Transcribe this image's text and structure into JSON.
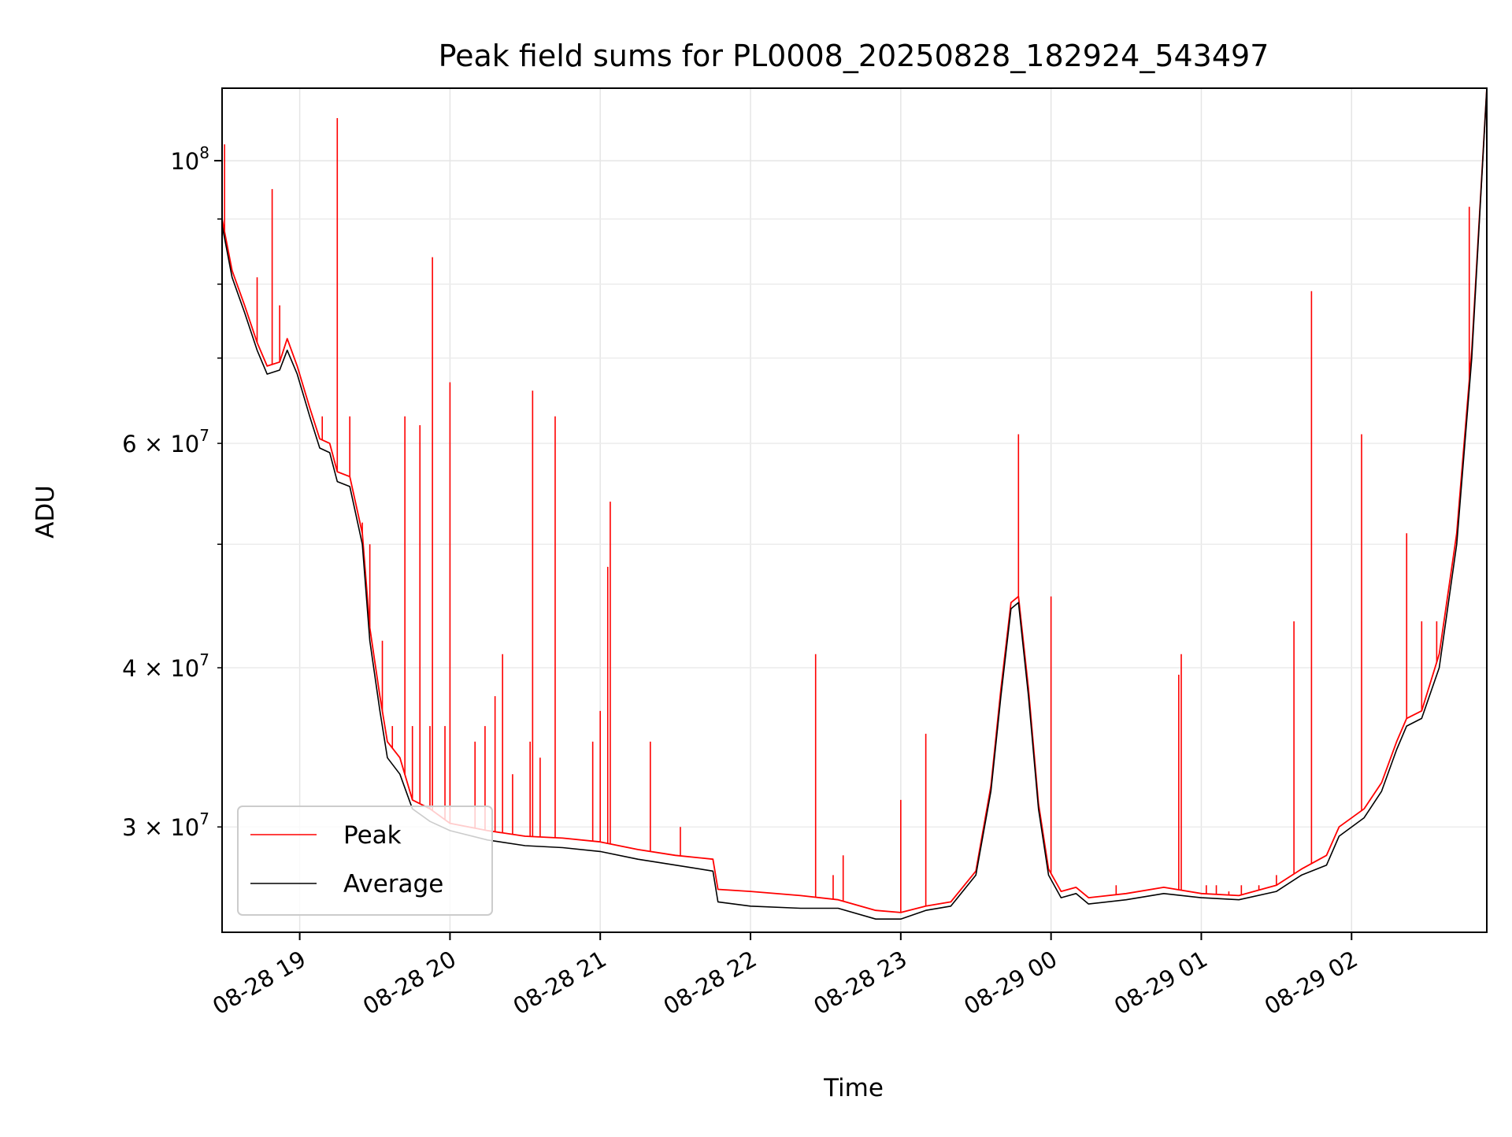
{
  "chart_data": {
    "type": "line",
    "title": "Peak field sums for PL0008_20250828_182924_543497",
    "xlabel": "Time",
    "ylabel": "ADU",
    "y_scale": "log",
    "grid": true,
    "legend_position": "lower-left",
    "xlim": [
      "2025-08-28 18:29",
      "2025-08-29 02:54"
    ],
    "ylim": [
      24800000,
      114000000
    ],
    "x_ticks": [
      {
        "t": "2025-08-28 19:00",
        "label": "08-28 19"
      },
      {
        "t": "2025-08-28 20:00",
        "label": "08-28 20"
      },
      {
        "t": "2025-08-28 21:00",
        "label": "08-28 21"
      },
      {
        "t": "2025-08-28 22:00",
        "label": "08-28 22"
      },
      {
        "t": "2025-08-28 23:00",
        "label": "08-28 23"
      },
      {
        "t": "2025-08-29 00:00",
        "label": "08-29 00"
      },
      {
        "t": "2025-08-29 01:00",
        "label": "08-29 01"
      },
      {
        "t": "2025-08-29 02:00",
        "label": "08-29 02"
      }
    ],
    "y_major_ticks": [
      {
        "v": 100000000,
        "base": "10",
        "exp": "8"
      }
    ],
    "y_minor_ticks": [
      {
        "v": 30000000,
        "coef": "3",
        "base": "10",
        "exp": "7"
      },
      {
        "v": 40000000,
        "coef": "4",
        "base": "10",
        "exp": "7"
      },
      {
        "v": 50000000
      },
      {
        "v": 60000000,
        "coef": "6",
        "base": "10",
        "exp": "7"
      },
      {
        "v": 70000000
      },
      {
        "v": 80000000
      },
      {
        "v": 90000000
      }
    ],
    "series": [
      {
        "name": "Average",
        "color": "#000000",
        "points": [
          [
            "2025-08-28 18:29",
            89000000
          ],
          [
            "2025-08-28 18:33",
            81000000
          ],
          [
            "2025-08-28 18:38",
            76000000
          ],
          [
            "2025-08-28 18:43",
            71000000
          ],
          [
            "2025-08-28 18:47",
            68000000
          ],
          [
            "2025-08-28 18:52",
            68500000
          ],
          [
            "2025-08-28 18:55",
            71000000
          ],
          [
            "2025-08-28 18:59",
            68000000
          ],
          [
            "2025-08-28 19:04",
            63000000
          ],
          [
            "2025-08-28 19:08",
            59500000
          ],
          [
            "2025-08-28 19:12",
            59000000
          ],
          [
            "2025-08-28 19:15",
            56000000
          ],
          [
            "2025-08-28 19:20",
            55500000
          ],
          [
            "2025-08-28 19:25",
            50000000
          ],
          [
            "2025-08-28 19:28",
            42000000
          ],
          [
            "2025-08-28 19:32",
            37000000
          ],
          [
            "2025-08-28 19:35",
            34000000
          ],
          [
            "2025-08-28 19:40",
            33000000
          ],
          [
            "2025-08-28 19:45",
            31000000
          ],
          [
            "2025-08-28 19:52",
            30300000
          ],
          [
            "2025-08-28 20:00",
            29800000
          ],
          [
            "2025-08-28 20:15",
            29300000
          ],
          [
            "2025-08-28 20:30",
            29000000
          ],
          [
            "2025-08-28 20:45",
            28900000
          ],
          [
            "2025-08-28 21:00",
            28700000
          ],
          [
            "2025-08-28 21:15",
            28300000
          ],
          [
            "2025-08-28 21:30",
            28000000
          ],
          [
            "2025-08-28 21:45",
            27700000
          ],
          [
            "2025-08-28 21:47",
            26200000
          ],
          [
            "2025-08-28 22:00",
            26000000
          ],
          [
            "2025-08-28 22:20",
            25900000
          ],
          [
            "2025-08-28 22:35",
            25900000
          ],
          [
            "2025-08-28 22:50",
            25400000
          ],
          [
            "2025-08-28 23:00",
            25400000
          ],
          [
            "2025-08-28 23:10",
            25800000
          ],
          [
            "2025-08-28 23:20",
            26000000
          ],
          [
            "2025-08-28 23:30",
            27500000
          ],
          [
            "2025-08-28 23:36",
            32000000
          ],
          [
            "2025-08-28 23:40",
            38000000
          ],
          [
            "2025-08-28 23:44",
            44500000
          ],
          [
            "2025-08-28 23:47",
            45000000
          ],
          [
            "2025-08-28 23:51",
            38000000
          ],
          [
            "2025-08-28 23:55",
            31000000
          ],
          [
            "2025-08-28 23:59",
            27500000
          ],
          [
            "2025-08-29 00:04",
            26400000
          ],
          [
            "2025-08-29 00:10",
            26600000
          ],
          [
            "2025-08-29 00:15",
            26100000
          ],
          [
            "2025-08-29 00:30",
            26300000
          ],
          [
            "2025-08-29 00:45",
            26600000
          ],
          [
            "2025-08-29 01:00",
            26400000
          ],
          [
            "2025-08-29 01:15",
            26300000
          ],
          [
            "2025-08-29 01:30",
            26700000
          ],
          [
            "2025-08-29 01:40",
            27500000
          ],
          [
            "2025-08-29 01:50",
            28000000
          ],
          [
            "2025-08-29 01:55",
            29500000
          ],
          [
            "2025-08-29 02:05",
            30500000
          ],
          [
            "2025-08-29 02:12",
            32000000
          ],
          [
            "2025-08-29 02:18",
            34500000
          ],
          [
            "2025-08-29 02:22",
            36000000
          ],
          [
            "2025-08-29 02:28",
            36500000
          ],
          [
            "2025-08-29 02:35",
            40000000
          ],
          [
            "2025-08-29 02:42",
            50000000
          ],
          [
            "2025-08-29 02:48",
            70000000
          ],
          [
            "2025-08-29 02:54",
            114000000
          ]
        ]
      },
      {
        "name": "Peak",
        "color": "#ff0000",
        "points": [
          [
            "2025-08-28 18:29",
            90000000
          ],
          [
            "2025-08-28 18:33",
            82000000
          ],
          [
            "2025-08-28 18:38",
            77000000
          ],
          [
            "2025-08-28 18:43",
            72000000
          ],
          [
            "2025-08-28 18:47",
            69000000
          ],
          [
            "2025-08-28 18:52",
            69500000
          ],
          [
            "2025-08-28 18:55",
            72500000
          ],
          [
            "2025-08-28 18:59",
            69000000
          ],
          [
            "2025-08-28 19:04",
            64000000
          ],
          [
            "2025-08-28 19:08",
            60500000
          ],
          [
            "2025-08-28 19:12",
            60000000
          ],
          [
            "2025-08-28 19:15",
            57000000
          ],
          [
            "2025-08-28 19:20",
            56500000
          ],
          [
            "2025-08-28 19:25",
            51000000
          ],
          [
            "2025-08-28 19:28",
            43000000
          ],
          [
            "2025-08-28 19:32",
            38000000
          ],
          [
            "2025-08-28 19:35",
            35000000
          ],
          [
            "2025-08-28 19:40",
            34000000
          ],
          [
            "2025-08-28 19:45",
            31500000
          ],
          [
            "2025-08-28 19:52",
            31000000
          ],
          [
            "2025-08-28 20:00",
            30200000
          ],
          [
            "2025-08-28 20:15",
            29800000
          ],
          [
            "2025-08-28 20:30",
            29500000
          ],
          [
            "2025-08-28 20:45",
            29400000
          ],
          [
            "2025-08-28 21:00",
            29200000
          ],
          [
            "2025-08-28 21:15",
            28800000
          ],
          [
            "2025-08-28 21:30",
            28500000
          ],
          [
            "2025-08-28 21:45",
            28300000
          ],
          [
            "2025-08-28 21:47",
            26800000
          ],
          [
            "2025-08-28 22:00",
            26700000
          ],
          [
            "2025-08-28 22:20",
            26500000
          ],
          [
            "2025-08-28 22:35",
            26300000
          ],
          [
            "2025-08-28 22:50",
            25800000
          ],
          [
            "2025-08-28 23:00",
            25700000
          ],
          [
            "2025-08-28 23:10",
            26000000
          ],
          [
            "2025-08-28 23:20",
            26200000
          ],
          [
            "2025-08-28 23:30",
            27700000
          ],
          [
            "2025-08-28 23:36",
            32300000
          ],
          [
            "2025-08-28 23:40",
            38500000
          ],
          [
            "2025-08-28 23:44",
            45000000
          ],
          [
            "2025-08-28 23:47",
            45500000
          ],
          [
            "2025-08-28 23:51",
            38500000
          ],
          [
            "2025-08-28 23:55",
            31300000
          ],
          [
            "2025-08-28 23:59",
            27800000
          ],
          [
            "2025-08-29 00:04",
            26700000
          ],
          [
            "2025-08-29 00:10",
            26900000
          ],
          [
            "2025-08-29 00:15",
            26400000
          ],
          [
            "2025-08-29 00:30",
            26600000
          ],
          [
            "2025-08-29 00:45",
            26900000
          ],
          [
            "2025-08-29 01:00",
            26600000
          ],
          [
            "2025-08-29 01:15",
            26500000
          ],
          [
            "2025-08-29 01:30",
            27000000
          ],
          [
            "2025-08-29 01:40",
            27800000
          ],
          [
            "2025-08-29 01:50",
            28500000
          ],
          [
            "2025-08-29 01:55",
            30000000
          ],
          [
            "2025-08-29 02:05",
            31000000
          ],
          [
            "2025-08-29 02:12",
            32500000
          ],
          [
            "2025-08-29 02:18",
            35000000
          ],
          [
            "2025-08-29 02:22",
            36500000
          ],
          [
            "2025-08-29 02:28",
            37000000
          ],
          [
            "2025-08-29 02:35",
            41000000
          ],
          [
            "2025-08-29 02:42",
            51000000
          ],
          [
            "2025-08-29 02:48",
            71000000
          ],
          [
            "2025-08-29 02:54",
            114000000
          ]
        ],
        "spikes": [
          [
            "2025-08-28 18:30",
            103000000
          ],
          [
            "2025-08-28 18:43",
            81000000
          ],
          [
            "2025-08-28 18:49",
            95000000
          ],
          [
            "2025-08-28 18:52",
            77000000
          ],
          [
            "2025-08-28 19:09",
            63000000
          ],
          [
            "2025-08-28 19:15",
            108000000
          ],
          [
            "2025-08-28 19:20",
            63000000
          ],
          [
            "2025-08-28 19:25",
            52000000
          ],
          [
            "2025-08-28 19:28",
            50000000
          ],
          [
            "2025-08-28 19:33",
            42000000
          ],
          [
            "2025-08-28 19:37",
            36000000
          ],
          [
            "2025-08-28 19:42",
            63000000
          ],
          [
            "2025-08-28 19:45",
            36000000
          ],
          [
            "2025-08-28 19:48",
            62000000
          ],
          [
            "2025-08-28 19:52",
            36000000
          ],
          [
            "2025-08-28 19:53",
            84000000
          ],
          [
            "2025-08-28 19:58",
            36000000
          ],
          [
            "2025-08-28 20:00",
            67000000
          ],
          [
            "2025-08-28 20:10",
            35000000
          ],
          [
            "2025-08-28 20:14",
            36000000
          ],
          [
            "2025-08-28 20:18",
            38000000
          ],
          [
            "2025-08-28 20:21",
            41000000
          ],
          [
            "2025-08-28 20:25",
            33000000
          ],
          [
            "2025-08-28 20:32",
            35000000
          ],
          [
            "2025-08-28 20:33",
            66000000
          ],
          [
            "2025-08-28 20:36",
            34000000
          ],
          [
            "2025-08-28 20:42",
            63000000
          ],
          [
            "2025-08-28 20:57",
            35000000
          ],
          [
            "2025-08-28 21:00",
            37000000
          ],
          [
            "2025-08-28 21:03",
            48000000
          ],
          [
            "2025-08-28 21:04",
            54000000
          ],
          [
            "2025-08-28 21:20",
            35000000
          ],
          [
            "2025-08-28 21:32",
            30000000
          ],
          [
            "2025-08-28 22:26",
            41000000
          ],
          [
            "2025-08-28 22:33",
            27500000
          ],
          [
            "2025-08-28 22:37",
            28500000
          ],
          [
            "2025-08-28 23:00",
            31500000
          ],
          [
            "2025-08-28 23:10",
            35500000
          ],
          [
            "2025-08-28 23:47",
            61000000
          ],
          [
            "2025-08-29 00:00",
            45500000
          ],
          [
            "2025-08-29 00:26",
            27000000
          ],
          [
            "2025-08-29 00:51",
            39500000
          ],
          [
            "2025-08-29 00:52",
            41000000
          ],
          [
            "2025-08-29 01:02",
            27000000
          ],
          [
            "2025-08-29 01:06",
            27000000
          ],
          [
            "2025-08-29 01:11",
            26700000
          ],
          [
            "2025-08-29 01:16",
            27000000
          ],
          [
            "2025-08-29 01:23",
            27000000
          ],
          [
            "2025-08-29 01:30",
            27500000
          ],
          [
            "2025-08-29 01:37",
            43500000
          ],
          [
            "2025-08-29 01:44",
            79000000
          ],
          [
            "2025-08-29 02:04",
            61000000
          ],
          [
            "2025-08-29 02:22",
            51000000
          ],
          [
            "2025-08-29 02:28",
            43500000
          ],
          [
            "2025-08-29 02:34",
            43500000
          ],
          [
            "2025-08-29 02:47",
            92000000
          ]
        ]
      }
    ]
  }
}
